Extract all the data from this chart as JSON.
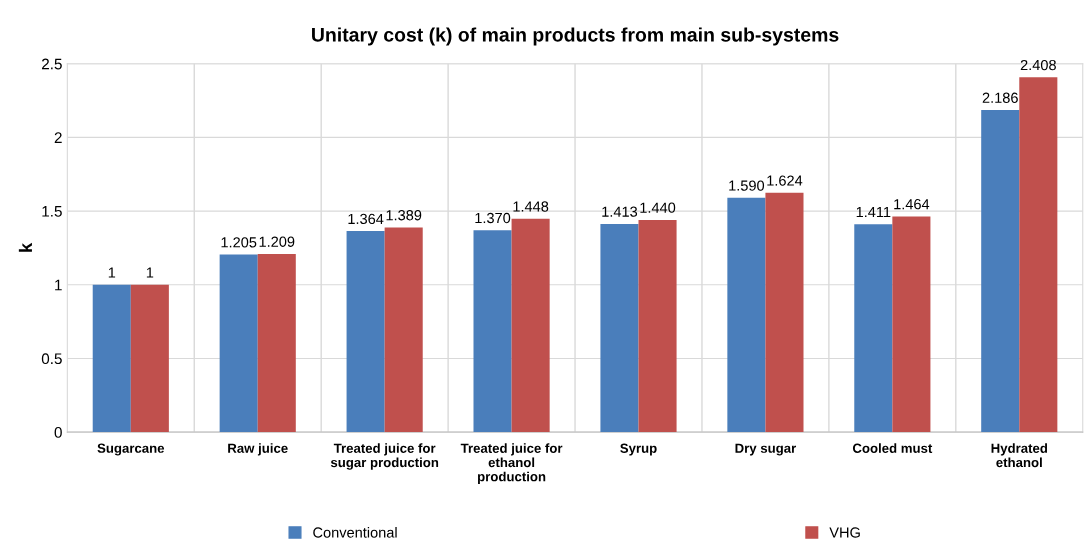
{
  "chart_data": {
    "type": "bar",
    "title": "Unitary cost (k) of main products from main sub-systems",
    "ylabel": "k",
    "categories": [
      "Sugarcane",
      "Raw juice",
      "Treated juice for\nsugar production",
      "Treated juice for\nethanol\nproduction",
      "Syrup",
      "Dry sugar",
      "Cooled must",
      "Hydrated\nethanol"
    ],
    "series": [
      {
        "name": "Conventional",
        "color": "#4a7ebb",
        "values": [
          1,
          1.205,
          1.364,
          1.37,
          1.413,
          1.59,
          1.411,
          2.186
        ],
        "value_labels": [
          "1",
          "1.205",
          "1.364",
          "1.370",
          "1.413",
          "1.590",
          "1.411",
          "2.186"
        ]
      },
      {
        "name": "VHG",
        "color": "#c0504d",
        "values": [
          1,
          1.209,
          1.389,
          1.448,
          1.44,
          1.624,
          1.464,
          2.408
        ],
        "value_labels": [
          "1",
          "1.209",
          "1.389",
          "1.448",
          "1.440",
          "1.624",
          "1.464",
          "2.408"
        ]
      }
    ],
    "ylim": [
      0,
      2.5
    ],
    "yticks": [
      0,
      0.5,
      1,
      1.5,
      2,
      2.5
    ],
    "grid": true,
    "legend": "bottom"
  }
}
